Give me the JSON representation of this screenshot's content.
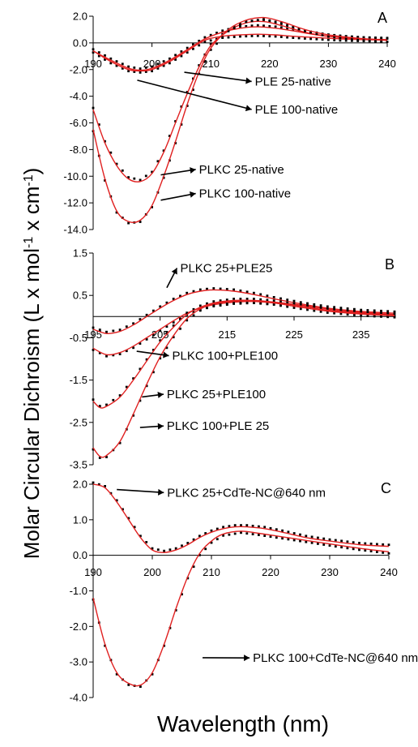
{
  "figure": {
    "ylabel_prefix": "Molar Circular Dichroism (L  x mol",
    "ylabel_exp1": "-1",
    "ylabel_mid": " x cm",
    "ylabel_exp2": "-1",
    "ylabel_suffix": ")",
    "xlabel": "Wavelength (nm)"
  },
  "colors": {
    "fit": "#e02020",
    "data": "#000000",
    "axis": "#000000"
  },
  "chart_data": [
    {
      "type": "line",
      "panel": "A",
      "xlim": [
        190,
        240
      ],
      "ylim": [
        -14,
        2
      ],
      "xticks": [
        190,
        200,
        210,
        220,
        230,
        240
      ],
      "xtick_labels": [
        "190",
        "200",
        "210",
        "220",
        "230",
        "240"
      ],
      "yticks": [
        2,
        0,
        -2,
        -4,
        -6,
        -8,
        -10,
        -12,
        -14
      ],
      "ytick_labels": [
        "2.0",
        "0.0",
        "-2.0",
        "-4.0",
        "-6.0",
        "-8.0",
        "-10.0",
        "-12.0",
        "-14.0"
      ],
      "series": [
        {
          "x": [
            190,
            193,
            196,
            198,
            200,
            203,
            206,
            209,
            212,
            215,
            218,
            221,
            224,
            228,
            232,
            236,
            240
          ],
          "y": [
            -0.6,
            -1.3,
            -1.9,
            -2.05,
            -1.9,
            -1.3,
            -0.5,
            0.3,
            0.8,
            1.1,
            1.2,
            1.1,
            0.9,
            0.6,
            0.4,
            0.3,
            0.25
          ]
        },
        {
          "x": [
            190,
            193,
            196,
            198,
            200,
            203,
            206,
            209,
            212,
            215,
            218,
            221,
            224,
            228,
            232,
            236,
            240
          ],
          "y": [
            -0.6,
            -1.4,
            -2.0,
            -2.1,
            -2.0,
            -1.4,
            -0.6,
            0.2,
            0.5,
            0.6,
            0.65,
            0.6,
            0.5,
            0.4,
            0.3,
            0.25,
            0.2
          ]
        },
        {
          "x": [
            190,
            192,
            194,
            196,
            198,
            200,
            202,
            204,
            206,
            208,
            210,
            213,
            216,
            219,
            222,
            226,
            230,
            235,
            240
          ],
          "y": [
            -5,
            -7.5,
            -9.2,
            -10.2,
            -10.4,
            -9.8,
            -8.2,
            -6,
            -3.8,
            -1.8,
            -0.2,
            0.9,
            1.5,
            1.6,
            1.3,
            0.8,
            0.5,
            0.3,
            0.2
          ]
        },
        {
          "x": [
            190,
            192,
            194,
            196,
            198,
            200,
            202,
            204,
            206,
            208,
            210,
            213,
            216,
            219,
            222,
            226,
            230,
            235,
            240
          ],
          "y": [
            -6.5,
            -10.2,
            -12.6,
            -13.4,
            -13.3,
            -12.2,
            -10,
            -7.4,
            -4.6,
            -2.2,
            -0.4,
            1.0,
            1.7,
            1.9,
            1.6,
            1.0,
            0.6,
            0.35,
            0.2
          ]
        }
      ],
      "annotations": [
        {
          "text": "PLE 25-native",
          "tx": 217.5,
          "ty": -3.2,
          "ax": 205.5,
          "ay": -2.2
        },
        {
          "text": "PLE 100-native",
          "tx": 217.5,
          "ty": -5.3,
          "ax": 197.5,
          "ay": -2.8
        },
        {
          "text": "PLKC 25-native",
          "tx": 208,
          "ty": -9.8,
          "ax": 201.5,
          "ay": -9.9
        },
        {
          "text": "PLKC 100-native",
          "tx": 208,
          "ty": -11.6,
          "ax": 201.5,
          "ay": -11.8
        }
      ]
    },
    {
      "type": "line",
      "panel": "B",
      "xlim": [
        195,
        240
      ],
      "ylim": [
        -3.5,
        1.5
      ],
      "xticks": [
        195,
        205,
        215,
        225,
        235
      ],
      "xtick_labels": [
        "195",
        "205",
        "215",
        "225",
        "235"
      ],
      "yticks": [
        1.5,
        0.5,
        -0.5,
        -1.5,
        -2.5,
        -3.5
      ],
      "ytick_labels": [
        "1.5",
        "0.5",
        "-0.5",
        "-1.5",
        "-2.5",
        "-3.5"
      ],
      "series": [
        {
          "x": [
            195,
            197,
            199,
            201,
            203,
            205,
            207,
            209,
            211,
            213,
            216,
            219,
            222,
            226,
            230,
            235,
            240
          ],
          "y": [
            -0.3,
            -0.4,
            -0.35,
            -0.2,
            0,
            0.2,
            0.38,
            0.52,
            0.6,
            0.63,
            0.6,
            0.52,
            0.42,
            0.3,
            0.2,
            0.12,
            0.08
          ]
        },
        {
          "x": [
            195,
            197,
            199,
            201,
            203,
            205,
            207,
            209,
            211,
            213,
            216,
            219,
            222,
            226,
            230,
            235,
            240
          ],
          "y": [
            -0.75,
            -0.9,
            -0.85,
            -0.7,
            -0.5,
            -0.3,
            -0.1,
            0.08,
            0.2,
            0.28,
            0.34,
            0.36,
            0.34,
            0.27,
            0.18,
            0.1,
            0.05
          ]
        },
        {
          "x": [
            195,
            196,
            197,
            199,
            201,
            203,
            205,
            207,
            209,
            211,
            213,
            216,
            219,
            222,
            226,
            230,
            235,
            240
          ],
          "y": [
            -2,
            -2.15,
            -2.12,
            -1.9,
            -1.5,
            -1.05,
            -0.6,
            -0.25,
            0.05,
            0.22,
            0.32,
            0.38,
            0.38,
            0.34,
            0.25,
            0.15,
            0.08,
            0.03
          ]
        },
        {
          "x": [
            195,
            196,
            197,
            199,
            201,
            203,
            205,
            207,
            209,
            211,
            213,
            216,
            219,
            222,
            226,
            230,
            235,
            240
          ],
          "y": [
            -3.1,
            -3.3,
            -3.28,
            -2.95,
            -2.3,
            -1.6,
            -0.95,
            -0.45,
            -0.05,
            0.18,
            0.3,
            0.36,
            0.36,
            0.32,
            0.22,
            0.13,
            0.06,
            0.02
          ]
        }
      ],
      "annotations": [
        {
          "text": "PLKC 25+PLE25",
          "tx": 208,
          "ty": 1.05,
          "ax": 206,
          "ay": 0.68
        },
        {
          "text": "PLKC 100+PLE100",
          "tx": 206.8,
          "ty": -1.02,
          "ax": 201.5,
          "ay": -0.82
        },
        {
          "text": "PLKC 25+PLE100",
          "tx": 206,
          "ty": -1.93,
          "ax": 202.3,
          "ay": -1.9
        },
        {
          "text": "PLKC 100+PLE 25",
          "tx": 206,
          "ty": -2.68,
          "ax": 202,
          "ay": -2.62
        }
      ]
    },
    {
      "type": "line",
      "panel": "C",
      "xlim": [
        190,
        240
      ],
      "ylim": [
        -4,
        2
      ],
      "xticks": [
        190,
        200,
        210,
        220,
        230,
        240
      ],
      "xtick_labels": [
        "190",
        "200",
        "210",
        "220",
        "230",
        "240"
      ],
      "yticks": [
        2,
        1,
        0,
        -1,
        -2,
        -3,
        -4
      ],
      "ytick_labels": [
        "2.0",
        "1.0",
        "0.0",
        "-1.0",
        "-2.0",
        "-3.0",
        "-4.0"
      ],
      "series": [
        {
          "x": [
            190,
            192,
            194,
            196,
            198,
            200,
            202,
            204,
            206,
            208,
            210,
            212,
            214,
            216,
            219,
            222,
            226,
            230,
            235,
            240
          ],
          "y": [
            2,
            1.9,
            1.5,
            1,
            0.5,
            0.15,
            0.08,
            0.15,
            0.3,
            0.5,
            0.65,
            0.75,
            0.8,
            0.8,
            0.75,
            0.65,
            0.5,
            0.4,
            0.3,
            0.25
          ]
        },
        {
          "x": [
            190,
            192,
            194,
            196,
            198,
            200,
            202,
            204,
            206,
            208,
            210,
            212,
            215,
            218,
            222,
            226,
            230,
            235,
            240
          ],
          "y": [
            -1.2,
            -2.5,
            -3.3,
            -3.6,
            -3.65,
            -3.3,
            -2.5,
            -1.5,
            -0.6,
            0.05,
            0.4,
            0.6,
            0.68,
            0.62,
            0.52,
            0.42,
            0.32,
            0.2,
            0.1
          ]
        }
      ],
      "annotations": [
        {
          "text": "PLKC 25+CdTe-NC@640 nm",
          "tx": 202.5,
          "ty": 1.65,
          "ax": 194,
          "ay": 1.85
        },
        {
          "text": "PLKC 100+CdTe-NC@640 nm",
          "tx": 217,
          "ty": -3.0,
          "ax": 208.5,
          "ay": -2.88
        }
      ]
    }
  ]
}
